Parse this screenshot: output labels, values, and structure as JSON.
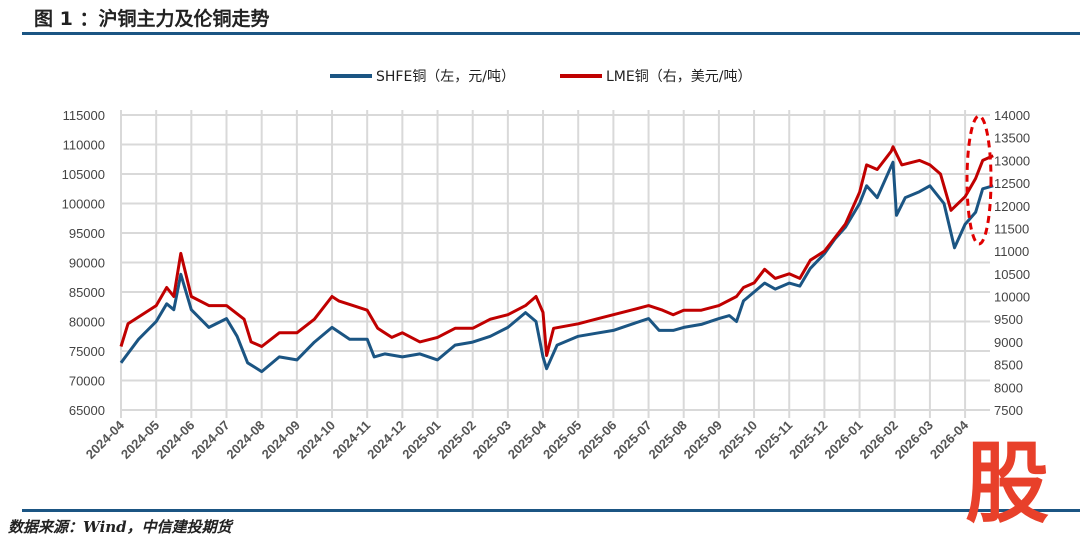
{
  "title": "图 1 ：沪铜主力及伦铜走势",
  "source": "数据来源：Wind，中信建投期货",
  "logo_text": "股",
  "chart_data": {
    "type": "line",
    "title": "沪铜主力及伦铜走势",
    "xlabel": "",
    "ylabel_left": "SHFE铜（左，元/吨）",
    "ylabel_right": "LME铜（右，美元/吨）",
    "legend_position": "top-center",
    "grid": true,
    "x_tick_labels": [
      "2024-04",
      "2024-05",
      "2024-06",
      "2024-07",
      "2024-08",
      "2024-09",
      "2024-10",
      "2024-11",
      "2024-12",
      "2025-01",
      "2025-02",
      "2025-03",
      "2025-04",
      "2025-05",
      "2025-06",
      "2025-07",
      "2025-08",
      "2025-09",
      "2025-10",
      "2025-11",
      "2025-12",
      "2026-01",
      "2026-02",
      "2026-03",
      "2026-04"
    ],
    "y_left_ticks": [
      "65000",
      "70000",
      "75000",
      "80000",
      "85000",
      "90000",
      "95000",
      "100000",
      "105000",
      "110000",
      "115000"
    ],
    "y_right_ticks": [
      "7500",
      "8000",
      "8500",
      "9000",
      "9500",
      "10000",
      "10500",
      "11000",
      "11500",
      "12000",
      "12500",
      "13000",
      "13500",
      "14000"
    ],
    "ylim_left": [
      65000,
      115000
    ],
    "ylim_right": [
      7500,
      14000
    ],
    "x_unit": "months since 2024-04",
    "series": [
      {
        "name": "SHFE铜（左，元/吨）",
        "axis": "left",
        "color": "#1b5583",
        "x": [
          0,
          0.5,
          1,
          1.3,
          1.5,
          1.7,
          2,
          2.5,
          3,
          3.3,
          3.6,
          4,
          4.5,
          5,
          5.5,
          6,
          6.5,
          7,
          7.2,
          7.5,
          8,
          8.5,
          9,
          9.5,
          10,
          10.5,
          11,
          11.5,
          11.8,
          12,
          12.1,
          12.4,
          13,
          13.5,
          14,
          14.5,
          15,
          15.3,
          15.7,
          16,
          16.5,
          17,
          17.3,
          17.5,
          17.7,
          18,
          18.3,
          18.6,
          19,
          19.3,
          19.6,
          20,
          20.3,
          20.6,
          21,
          21.2,
          21.5,
          21.95,
          22.05,
          22.3,
          22.7,
          23,
          23.4,
          23.6,
          23.7,
          24,
          24.3,
          24.5,
          24.8
        ],
        "values": [
          73000,
          77000,
          80000,
          83000,
          82000,
          88000,
          82000,
          79000,
          80500,
          77500,
          73000,
          71500,
          74000,
          73500,
          76500,
          79000,
          77000,
          77000,
          74000,
          74500,
          74000,
          74500,
          73500,
          76000,
          76500,
          77500,
          79000,
          81500,
          80000,
          74000,
          72000,
          76000,
          77500,
          78000,
          78500,
          79500,
          80500,
          78500,
          78500,
          79000,
          79500,
          80500,
          81000,
          80000,
          83500,
          85000,
          86500,
          85500,
          86500,
          86000,
          89000,
          91500,
          94000,
          96000,
          100000,
          103000,
          101000,
          107000,
          98000,
          101000,
          102000,
          103000,
          100000,
          95000,
          92500,
          96500,
          98500,
          102500,
          103000
        ]
      },
      {
        "name": "LME铜（右，美元/吨）",
        "axis": "right",
        "color": "#c00000",
        "x": [
          0,
          0.2,
          1,
          1.3,
          1.5,
          1.7,
          2,
          2.5,
          3,
          3.5,
          3.7,
          4,
          4.5,
          5,
          5.5,
          6,
          6.2,
          6.6,
          7,
          7.3,
          7.7,
          8,
          8.5,
          9,
          9.5,
          10,
          10.5,
          11,
          11.5,
          11.8,
          12,
          12.1,
          12.3,
          13,
          13.5,
          14,
          14.5,
          15,
          15.4,
          15.7,
          16,
          16.5,
          17,
          17.5,
          17.7,
          18,
          18.3,
          18.6,
          19,
          19.3,
          19.6,
          20,
          20.3,
          20.6,
          21,
          21.2,
          21.5,
          21.9,
          21.95,
          22.2,
          22.7,
          23,
          23.3,
          23.6,
          24,
          24.3,
          24.5,
          24.8
        ],
        "values": [
          8900,
          9400,
          9800,
          10200,
          10000,
          10950,
          10000,
          9800,
          9800,
          9500,
          9000,
          8900,
          9200,
          9200,
          9500,
          10000,
          9900,
          9800,
          9700,
          9300,
          9100,
          9200,
          9000,
          9100,
          9300,
          9300,
          9500,
          9600,
          9800,
          10000,
          9650,
          8700,
          9300,
          9400,
          9500,
          9600,
          9700,
          9800,
          9700,
          9600,
          9700,
          9700,
          9800,
          10000,
          10200,
          10300,
          10600,
          10400,
          10500,
          10400,
          10800,
          11000,
          11300,
          11600,
          12300,
          12900,
          12800,
          13200,
          13300,
          12900,
          13000,
          12900,
          12700,
          11900,
          12200,
          12600,
          13000,
          13100
        ]
      }
    ],
    "annotations": [
      {
        "type": "dashed-ellipse",
        "color": "#e00000",
        "highlights": "latest period, 2026-04"
      }
    ]
  }
}
